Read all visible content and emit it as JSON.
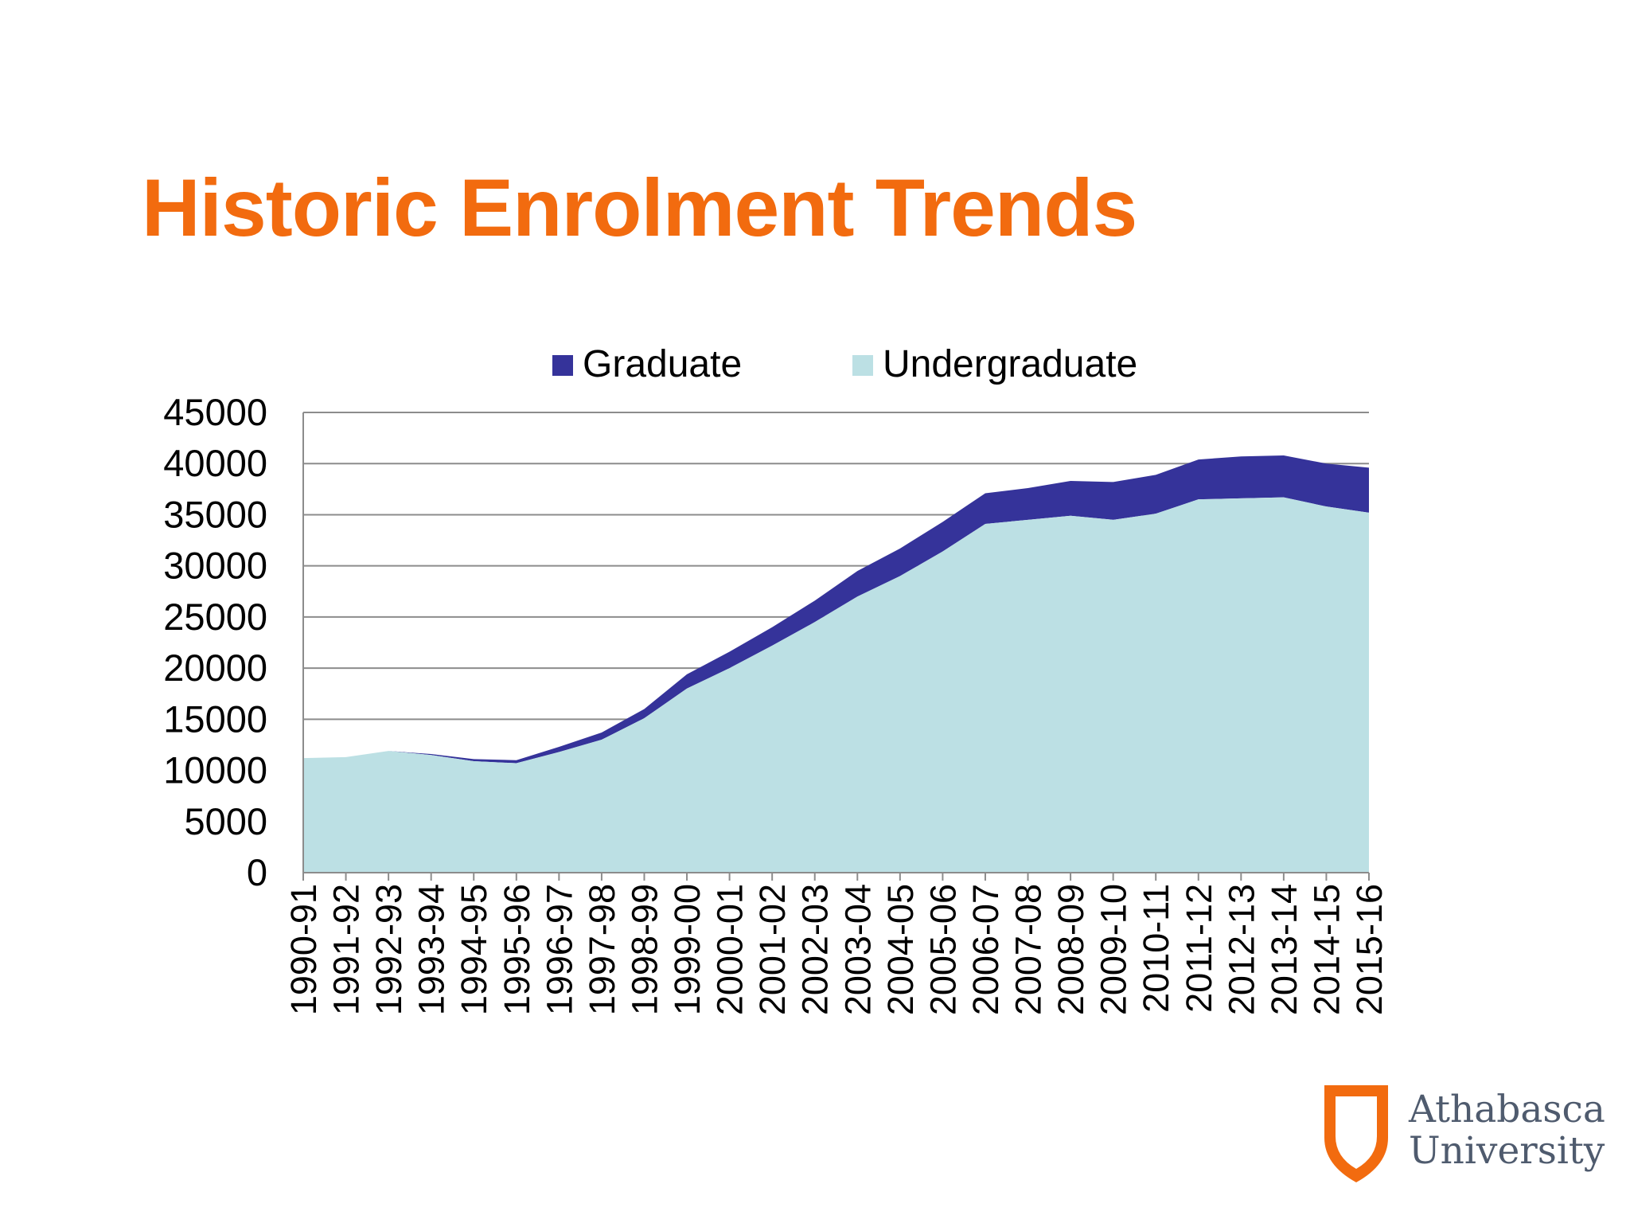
{
  "slide": {
    "title": "Historic Enrolment Trends"
  },
  "colors": {
    "title": "#F26B0F",
    "graduate": "#35339A",
    "undergraduate": "#BCE0E4",
    "gridline": "#8C8C8C",
    "axis_text": "#000000",
    "logo_orange": "#F26B0F",
    "logo_text": "#4F5B6E"
  },
  "logo": {
    "icon": "shield-icon",
    "line1": "Athabasca",
    "line2": "University"
  },
  "chart_data": {
    "type": "area",
    "stacked": true,
    "categories": [
      "1990-91",
      "1991-92",
      "1992-93",
      "1993-94",
      "1994-95",
      "1995-96",
      "1996-97",
      "1997-98",
      "1998-99",
      "1999-00",
      "2000-01",
      "2001-02",
      "2002-03",
      "2003-04",
      "2004-05",
      "2005-06",
      "2006-07",
      "2007-08",
      "2008-09",
      "2009-10",
      "2010-11",
      "2011-12",
      "2012-13",
      "2013-14",
      "2014-15",
      "2015-16"
    ],
    "series": [
      {
        "name": "Undergraduate",
        "color": "#BCE0E4",
        "values": [
          11200,
          11300,
          11900,
          11500,
          10900,
          10700,
          11800,
          13000,
          15100,
          18000,
          20000,
          22200,
          24500,
          27000,
          29000,
          31400,
          34100,
          34500,
          34900,
          34500,
          35100,
          36500,
          36600,
          36700,
          35800,
          35200
        ]
      },
      {
        "name": "Graduate",
        "color": "#35339A",
        "values": [
          0,
          0,
          0,
          100,
          200,
          300,
          500,
          700,
          900,
          1400,
          1600,
          1800,
          2100,
          2500,
          2700,
          2900,
          3000,
          3100,
          3400,
          3700,
          3800,
          3900,
          4100,
          4100,
          4200,
          4400
        ]
      }
    ],
    "legend": {
      "position": "top",
      "order": [
        "Graduate",
        "Undergraduate"
      ]
    },
    "y_ticks": [
      "0",
      "5000",
      "10000",
      "15000",
      "20000",
      "25000",
      "30000",
      "35000",
      "40000",
      "45000"
    ],
    "ylim": [
      0,
      45000
    ],
    "grid": true
  }
}
